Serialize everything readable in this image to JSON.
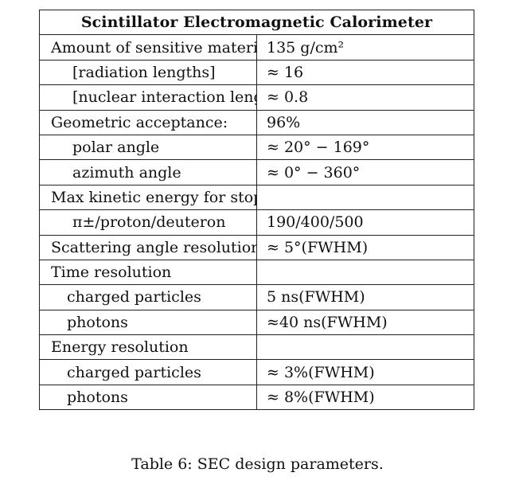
{
  "table": {
    "title": "Scintillator Electromagnetic Calorimeter",
    "rows": [
      {
        "label": "Amount of sensitive material",
        "value": "135 g/cm²",
        "indent": 0
      },
      {
        "label": "[radiation lengths]",
        "value": "≈ 16",
        "indent": 1
      },
      {
        "label": "[nuclear interaction length]",
        "value": "≈ 0.8",
        "indent": 1
      },
      {
        "label": "Geometric acceptance:",
        "value": "96%",
        "indent": 0
      },
      {
        "label": "polar angle",
        "value": "≈ 20° − 169°",
        "indent": 1
      },
      {
        "label": "azimuth angle",
        "value": "≈ 0° − 360°",
        "indent": 1
      },
      {
        "label": "Max kinetic energy for stopping",
        "value": "",
        "indent": 0
      },
      {
        "label": "π±/proton/deuteron",
        "value": "190/400/500",
        "indent": 1
      },
      {
        "label": "Scattering angle resolution",
        "value": "≈ 5°(FWHM)",
        "indent": 0
      },
      {
        "label": "Time resolution",
        "value": "",
        "indent": 0
      },
      {
        "label": "charged particles",
        "value": "5 ns(FWHM)",
        "indent": 2
      },
      {
        "label": "photons",
        "value": "≈40 ns(FWHM)",
        "indent": 2
      },
      {
        "label": "Energy resolution",
        "value": "",
        "indent": 0
      },
      {
        "label": "charged particles",
        "value": "≈ 3%(FWHM)",
        "indent": 2
      },
      {
        "label": "photons",
        "value": "≈ 8%(FWHM)",
        "indent": 2
      }
    ]
  },
  "caption": "Table 6: SEC design parameters."
}
